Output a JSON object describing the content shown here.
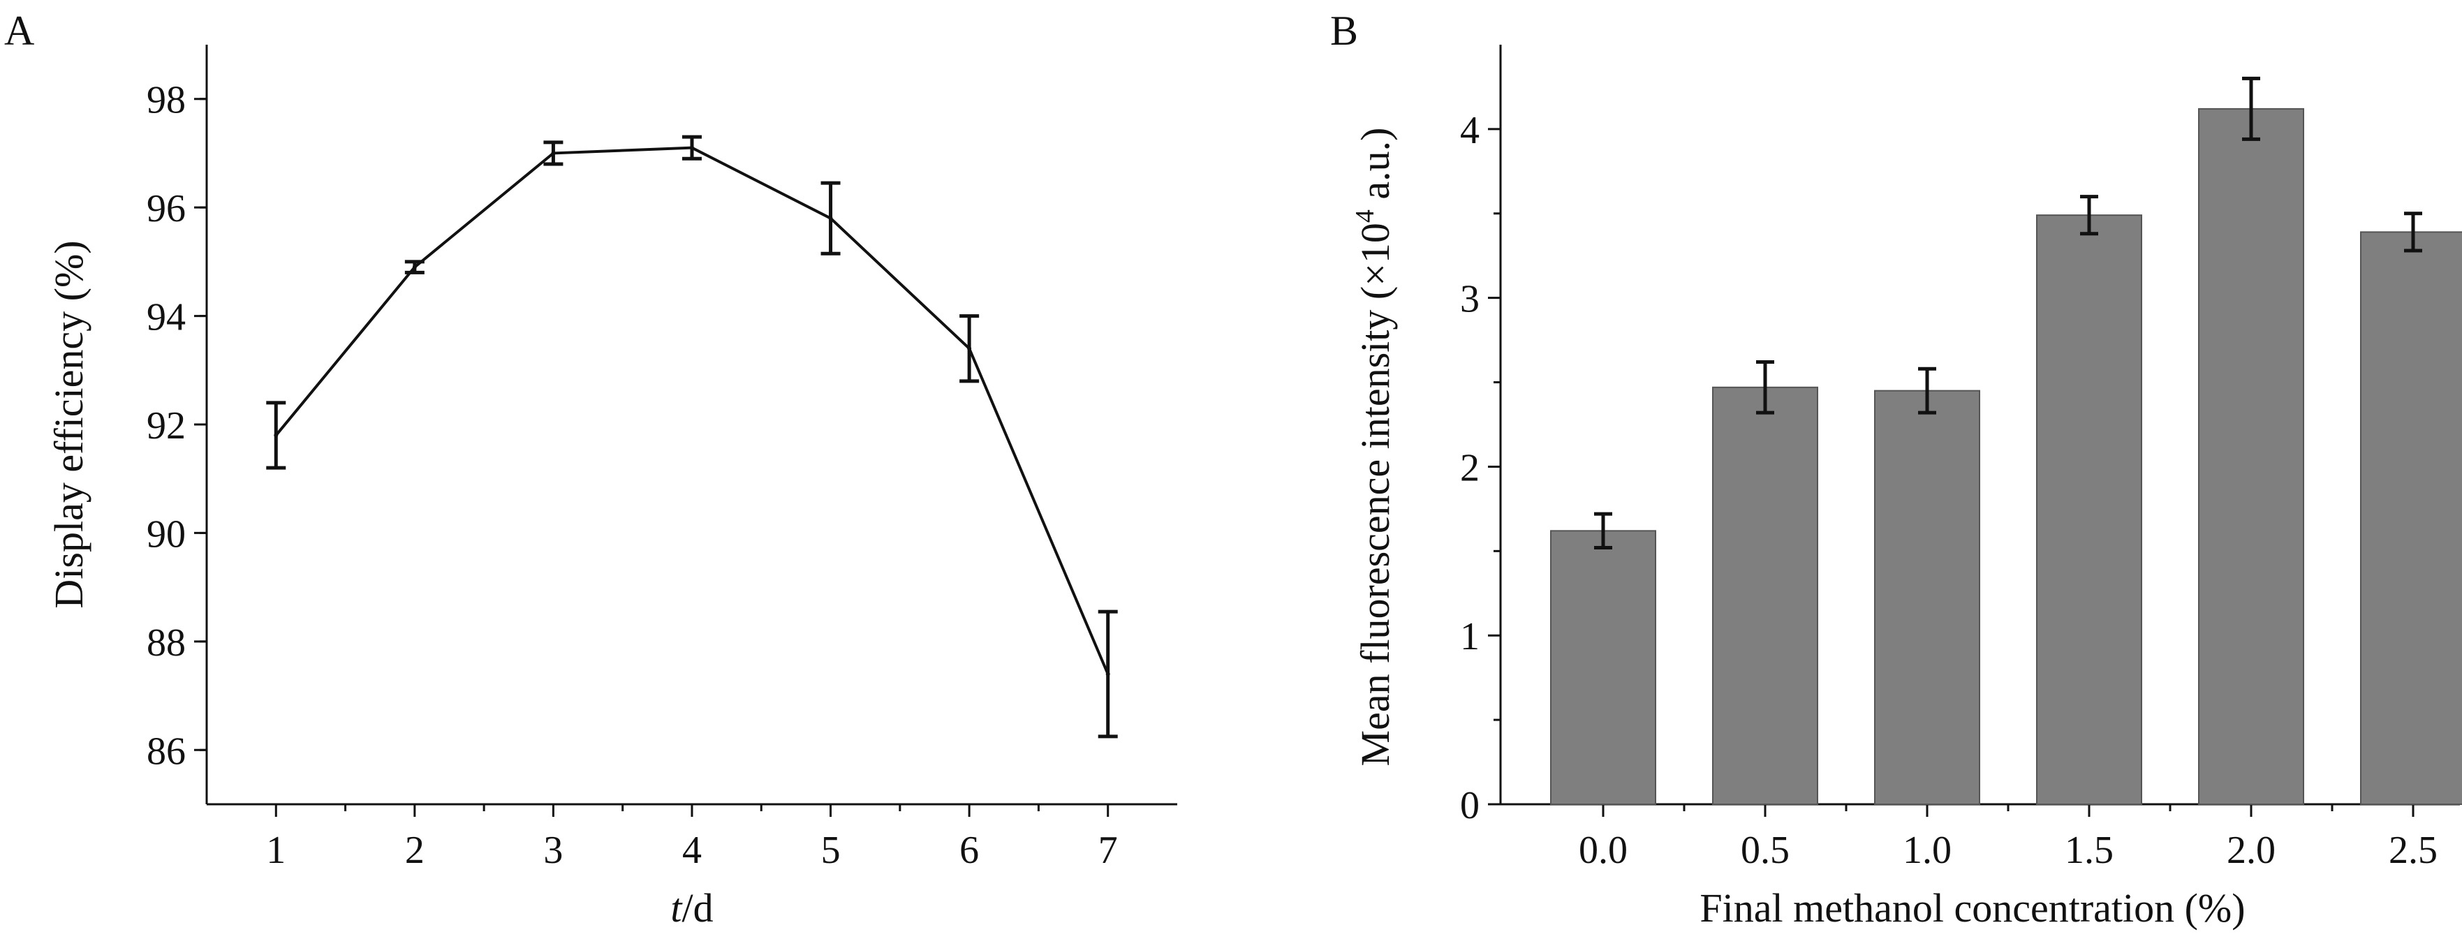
{
  "chart_data": [
    {
      "panel_label": "A",
      "type": "line",
      "xlabel_italic": "t",
      "xlabel_rest": "/d",
      "ylabel": "Display efficiency (%)",
      "x": [
        1,
        2,
        3,
        4,
        5,
        6,
        7
      ],
      "x_ticks": [
        "1",
        "2",
        "3",
        "4",
        "5",
        "6",
        "7"
      ],
      "xlim": [
        0.5,
        7.5
      ],
      "ylim": [
        85,
        99
      ],
      "y_ticks": [
        86,
        88,
        90,
        92,
        94,
        96,
        98
      ],
      "series": [
        {
          "values": [
            91.8,
            94.9,
            97.0,
            97.1,
            95.8,
            93.4,
            87.4
          ],
          "errors": [
            0.6,
            0.1,
            0.2,
            0.2,
            0.65,
            0.6,
            1.15
          ],
          "color": "#111111"
        }
      ],
      "grid": false,
      "legend": "none"
    },
    {
      "panel_label": "B",
      "type": "bar",
      "xlabel": "Final methanol concentration (%)",
      "ylabel_main": "Mean fluorescence intensity (×10",
      "ylabel_sup": "4",
      "ylabel_end": " a.u.)",
      "categories": [
        "0.0",
        "0.5",
        "1.0",
        "1.5",
        "2.0",
        "2.5"
      ],
      "ylim": [
        0,
        4.5
      ],
      "y_ticks": [
        0,
        1,
        2,
        3,
        4
      ],
      "series": [
        {
          "values": [
            1.62,
            2.47,
            2.45,
            3.49,
            4.12,
            3.39
          ],
          "errors": [
            0.1,
            0.15,
            0.13,
            0.11,
            0.18,
            0.11
          ],
          "color": "#7f7f7f"
        }
      ],
      "grid": false,
      "legend": "none"
    }
  ]
}
